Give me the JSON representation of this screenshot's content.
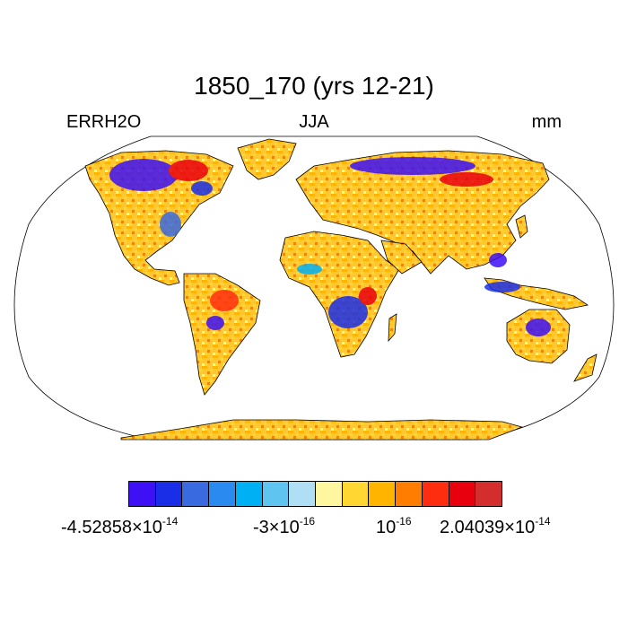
{
  "title": "1850_170 (yrs 12-21)",
  "left_label": "ERRH2O",
  "center_label": "JJA",
  "right_label": "mm",
  "colorbar": {
    "colors": [
      "#3d10f5",
      "#1a2ee8",
      "#3a6ae0",
      "#2a8af0",
      "#00b0f5",
      "#60c4f0",
      "#b0def5",
      "#fff7a0",
      "#ffd632",
      "#ffb400",
      "#ff7d00",
      "#ff2d10",
      "#e8000f",
      "#d42d2d"
    ],
    "labels": [
      {
        "mantissa": "-4.52858",
        "exponent": "-14"
      },
      {
        "mantissa": "-3",
        "exponent": "-16"
      },
      {
        "mantissa": "10",
        "exponent": "-16"
      },
      {
        "mantissa": "2.04039",
        "exponent": "-14"
      }
    ],
    "times_symbol": "×"
  },
  "map": {
    "projection": "Robinson",
    "ocean_color": "#ffffff",
    "dominant_land_color": "#ffc832",
    "coastline_color": "#000000"
  }
}
